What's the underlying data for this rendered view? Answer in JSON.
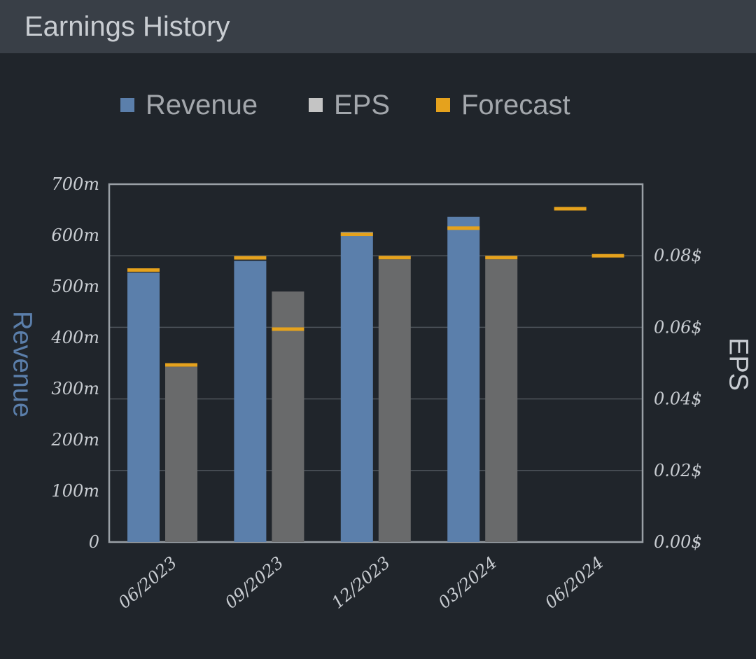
{
  "header": {
    "title": "Earnings History"
  },
  "legend": [
    {
      "label": "Revenue",
      "color": "#5b7fab"
    },
    {
      "label": "EPS",
      "color": "#c4c4c4"
    },
    {
      "label": "Forecast",
      "color": "#e5a21d"
    }
  ],
  "chart_data": {
    "type": "bar",
    "categories": [
      "06/2023",
      "09/2023",
      "12/2023",
      "03/2024",
      "06/2024"
    ],
    "series": [
      {
        "name": "Revenue",
        "axis": "left",
        "values": [
          527,
          550,
          607,
          636,
          null
        ],
        "forecast": [
          532,
          556,
          602,
          614,
          652
        ],
        "color": "#5b7fab"
      },
      {
        "name": "EPS",
        "axis": "right",
        "values": [
          0.049,
          0.07,
          0.079,
          0.079,
          null
        ],
        "forecast": [
          0.0495,
          0.0595,
          0.0795,
          0.0795,
          0.08
        ],
        "color": "#696a6b"
      }
    ],
    "forecast_color": "#e5a21d",
    "xlabel": "",
    "ylabel_left": "Revenue",
    "ylabel_right": "EPS",
    "ylim_left": [
      0,
      700
    ],
    "ylim_right": [
      0,
      0.1
    ],
    "yticks_left": [
      "0",
      "100m",
      "200m",
      "300m",
      "400m",
      "500m",
      "600m",
      "700m"
    ],
    "yticks_right": [
      "0.00$",
      "0.02$",
      "0.04$",
      "0.06$",
      "0.08$"
    ],
    "grid": true
  }
}
